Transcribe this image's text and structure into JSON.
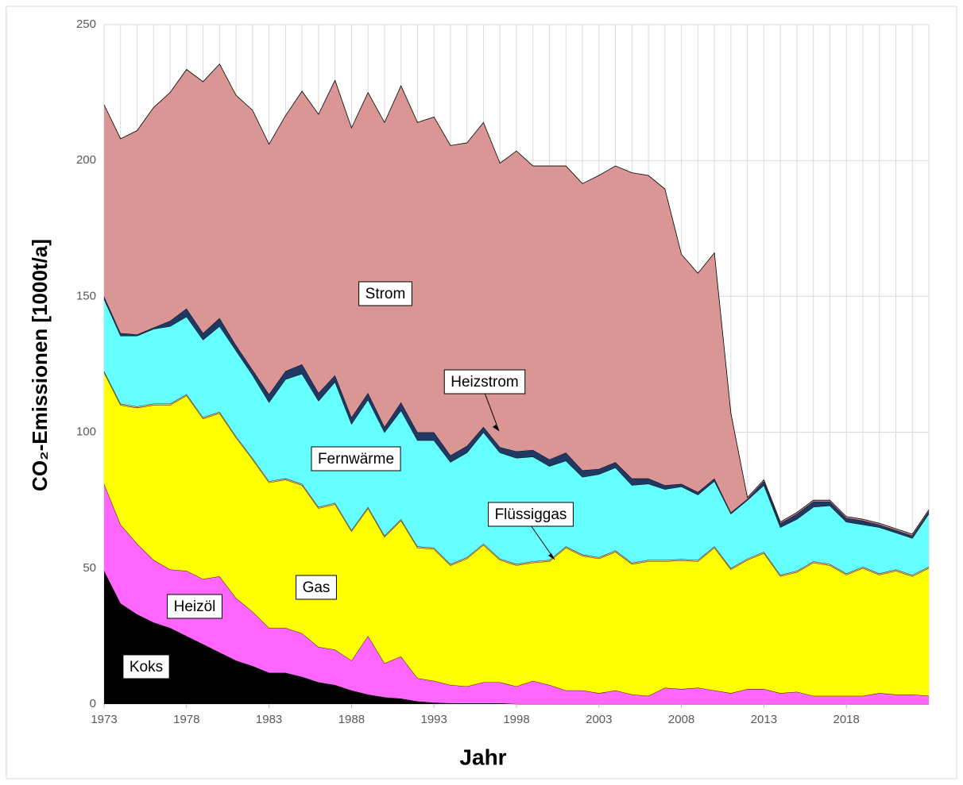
{
  "chart_data": {
    "type": "stacked_area",
    "xlabel": "Jahr",
    "ylabel": "CO₂-Emissionen [1000t/a]",
    "x": [
      1973,
      1974,
      1975,
      1976,
      1977,
      1978,
      1979,
      1980,
      1981,
      1982,
      1983,
      1984,
      1985,
      1986,
      1987,
      1988,
      1989,
      1990,
      1991,
      1992,
      1993,
      1994,
      1995,
      1996,
      1997,
      1998,
      1999,
      2000,
      2001,
      2002,
      2003,
      2004,
      2005,
      2006,
      2007,
      2008,
      2009,
      2010,
      2011,
      2012,
      2013,
      2014,
      2015,
      2016,
      2017,
      2018,
      2019,
      2020,
      2021,
      2022,
      2023
    ],
    "xlim": [
      1973,
      2023
    ],
    "xticks": [
      1973,
      1978,
      1983,
      1988,
      1993,
      1998,
      2003,
      2008,
      2013,
      2018
    ],
    "ylim": [
      0,
      250
    ],
    "yticks": [
      0,
      50,
      100,
      150,
      200,
      250
    ],
    "grid": true,
    "series": [
      {
        "name": "Koks",
        "color": "#000000",
        "values": [
          49,
          37,
          33,
          30,
          28,
          25,
          22,
          19,
          16,
          14,
          11.5,
          11.5,
          10,
          8,
          7,
          5,
          3.5,
          2.5,
          2,
          1,
          0.5,
          0.3,
          0.3,
          0.3,
          0.3,
          0,
          0,
          0,
          0,
          0,
          0,
          0,
          0,
          0,
          0,
          0,
          0,
          0,
          0,
          0,
          0,
          0,
          0,
          0,
          0,
          0,
          0,
          0,
          0,
          0,
          0
        ]
      },
      {
        "name": "Heizöl",
        "color": "#ff66ff",
        "values": [
          32,
          29,
          26,
          23,
          21.5,
          24,
          24,
          28,
          23,
          20,
          16.5,
          16.5,
          16,
          13,
          13,
          11,
          21.5,
          12.5,
          15.5,
          8.5,
          8,
          6.7,
          6.2,
          7.7,
          7.7,
          6.5,
          8.5,
          7,
          5,
          5,
          4,
          5,
          3.5,
          3,
          6,
          5.5,
          6,
          5,
          4,
          5.5,
          5.5,
          4,
          4.5,
          3,
          3,
          3,
          3,
          4,
          3.5,
          3.5,
          3
        ]
      },
      {
        "name": "Gas",
        "color": "#ffff00",
        "values": [
          41,
          44,
          50,
          57,
          60.5,
          64.5,
          59,
          60,
          59,
          56,
          53.5,
          54.5,
          54.5,
          51,
          53.5,
          47.5,
          47,
          46.5,
          50,
          48,
          48.5,
          44,
          47,
          50.5,
          45,
          44.5,
          43.5,
          45.5,
          52.5,
          49.5,
          49.5,
          51,
          48,
          49.5,
          46.5,
          47.3,
          46.5,
          52.5,
          45.5,
          47.5,
          50,
          43,
          44,
          49,
          48,
          44.5,
          47,
          43.5,
          45.5,
          43.5,
          47
        ]
      },
      {
        "name": "Flüssiggas",
        "color": "#f4b183",
        "values": [
          0.5,
          0.5,
          0.5,
          0.5,
          0.5,
          0.5,
          0.5,
          0.5,
          0.5,
          0.5,
          0.5,
          0.5,
          0.5,
          0.5,
          0.5,
          0.5,
          0.5,
          0.5,
          0.5,
          0.5,
          0.5,
          0.5,
          0.5,
          0.5,
          0.5,
          0.5,
          0.5,
          0.5,
          0.5,
          0.5,
          0.5,
          0.5,
          0.5,
          0.5,
          0.5,
          0.5,
          0.5,
          0.5,
          0.5,
          0.5,
          0.5,
          0.5,
          0.5,
          0.5,
          0.5,
          0.5,
          0.5,
          0.5,
          0.5,
          0.5,
          0.5
        ]
      },
      {
        "name": "Fernwärme",
        "color": "#66ffff",
        "values": [
          26.5,
          25,
          26,
          27.5,
          28.5,
          28.5,
          28.5,
          31.5,
          31.5,
          30.5,
          29,
          36.5,
          40.5,
          39,
          44.5,
          39,
          39.5,
          38,
          40,
          39,
          39.5,
          37.5,
          38.5,
          41,
          39,
          39,
          38.5,
          34.5,
          31.5,
          28.5,
          30.5,
          30.5,
          28.5,
          28,
          26,
          26.7,
          24,
          24,
          20,
          21.5,
          24.5,
          17.5,
          19,
          20,
          21.5,
          19,
          15.5,
          17,
          13.5,
          13.5,
          19.5
        ]
      },
      {
        "name": "Heizstrom",
        "color": "#1f3864",
        "values": [
          1,
          1,
          0.5,
          0.5,
          2,
          3,
          2.5,
          3,
          2,
          2,
          3,
          3,
          3.5,
          3,
          2.5,
          2.5,
          2.5,
          2,
          3,
          3,
          3,
          2.5,
          2.5,
          2,
          2,
          2.5,
          2.5,
          2.5,
          3,
          2.5,
          2,
          2,
          2.5,
          2,
          1.5,
          1,
          1,
          1,
          0.5,
          0.5,
          1.5,
          1.5,
          2,
          2,
          1.5,
          1.5,
          1.5,
          1,
          1,
          1,
          1
        ]
      },
      {
        "name": "Strom",
        "color": "#d99694",
        "values": [
          70.5,
          71.5,
          75,
          81,
          84,
          88,
          92.5,
          93.5,
          92,
          95.5,
          92,
          94,
          100.5,
          102.5,
          108.5,
          106.5,
          110.5,
          112,
          116.5,
          114,
          116,
          114,
          111.5,
          112,
          104.5,
          110.5,
          104.5,
          108,
          105.5,
          105.5,
          108,
          109,
          112.5,
          111.5,
          109,
          84.5,
          80.5,
          83,
          36.5,
          0.5,
          0.5,
          0.5,
          0.5,
          0.5,
          0.5,
          0.5,
          0.5,
          0.5,
          0.5,
          0.5,
          0.5
        ]
      }
    ],
    "annotations": [
      {
        "text": "Strom",
        "series": "Strom"
      },
      {
        "text": "Heizstrom",
        "series": "Heizstrom"
      },
      {
        "text": "Fernwärme",
        "series": "Fernwärme"
      },
      {
        "text": "Flüssiggas",
        "series": "Flüssiggas"
      },
      {
        "text": "Gas",
        "series": "Gas"
      },
      {
        "text": "Heizöl",
        "series": "Heizöl"
      },
      {
        "text": "Koks",
        "series": "Koks"
      }
    ]
  }
}
